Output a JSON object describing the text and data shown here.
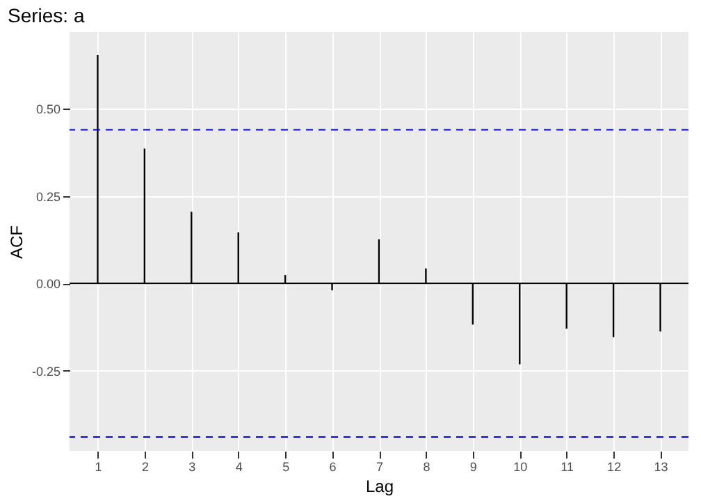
{
  "chart_data": {
    "type": "bar",
    "title": "Series: a",
    "xlabel": "Lag",
    "ylabel": "ACF",
    "x": [
      1,
      2,
      3,
      4,
      5,
      6,
      7,
      8,
      9,
      10,
      11,
      12,
      13
    ],
    "values": [
      0.654,
      0.386,
      0.205,
      0.146,
      0.024,
      -0.02,
      0.126,
      0.043,
      -0.118,
      -0.232,
      -0.13,
      -0.154,
      -0.138
    ],
    "color": "#000000",
    "xlim": [
      0.4,
      13.6
    ],
    "xticks": [
      1,
      2,
      3,
      4,
      5,
      6,
      7,
      8,
      9,
      10,
      11,
      12,
      13
    ],
    "ylim": [
      -0.48,
      0.72
    ],
    "yticks": [
      {
        "value": -0.25,
        "label": "-0.25"
      },
      {
        "value": 0,
        "label": "0.00"
      },
      {
        "value": 0.25,
        "label": "0.25"
      },
      {
        "value": 0.5,
        "label": "0.50"
      }
    ],
    "ref_lines": [
      {
        "axis": "y",
        "value": 0,
        "color": "#000000",
        "line_style": "solid"
      },
      {
        "axis": "y",
        "value": 0.44,
        "color": "#0000ff",
        "line_style": "dashed"
      },
      {
        "axis": "y",
        "value": -0.44,
        "color": "#0000ff",
        "line_style": "dashed"
      }
    ],
    "grid": true
  }
}
